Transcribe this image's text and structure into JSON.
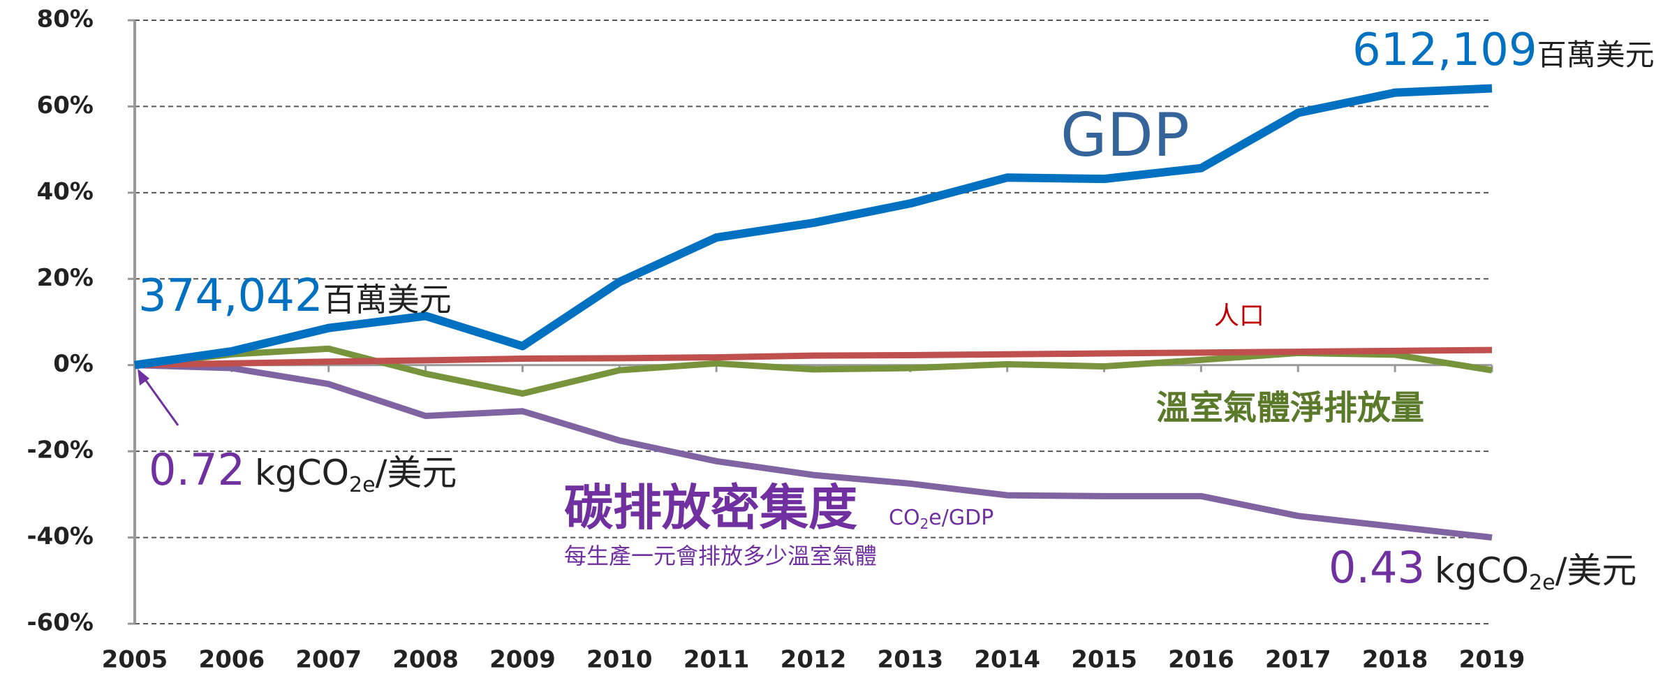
{
  "chart_data": {
    "type": "line",
    "categories": [
      "2005",
      "2006",
      "2007",
      "2008",
      "2009",
      "2010",
      "2011",
      "2012",
      "2013",
      "2014",
      "2015",
      "2016",
      "2017",
      "2018",
      "2019"
    ],
    "series": [
      {
        "name": "GDP",
        "color": "#0070c0",
        "values": [
          0,
          3.2,
          8.6,
          11.4,
          4.4,
          19.3,
          29.6,
          33,
          37.5,
          43.5,
          43.2,
          45.7,
          58.5,
          63.2,
          64.2
        ]
      },
      {
        "name": "人口",
        "color": "#c0504d",
        "values": [
          0,
          0.4,
          0.8,
          1.1,
          1.5,
          1.6,
          1.8,
          2.2,
          2.3,
          2.5,
          2.7,
          2.9,
          3.1,
          3.3,
          3.5
        ]
      },
      {
        "name": "溫室氣體淨排放量",
        "color": "#77933c",
        "values": [
          0,
          2.5,
          3.8,
          -2,
          -6.6,
          -1.2,
          0.4,
          -1,
          -0.7,
          0.2,
          -0.3,
          1.2,
          2.8,
          2.4,
          -1.2
        ]
      },
      {
        "name": "碳排放密集度",
        "color": "#8064a2",
        "values": [
          0,
          -0.7,
          -4.4,
          -11.8,
          -10.7,
          -17.5,
          -22.3,
          -25.5,
          -27.5,
          -30.2,
          -30.4,
          -30.4,
          -35,
          -37.5,
          -40
        ]
      }
    ],
    "ylim": [
      -60,
      80
    ],
    "yticks": [
      {
        "value": -60,
        "label": "-60%"
      },
      {
        "value": -40,
        "label": "-40%"
      },
      {
        "value": -20,
        "label": "-20%"
      },
      {
        "value": 0,
        "label": "0%"
      },
      {
        "value": 20,
        "label": "20%"
      },
      {
        "value": 40,
        "label": "40%"
      },
      {
        "value": 60,
        "label": "60%"
      },
      {
        "value": 80,
        "label": "80%"
      }
    ],
    "grid": true,
    "annotations": {
      "gdp_start": "374,042",
      "gdp_start_unit": "百萬美元",
      "gdp_end": "612,109",
      "gdp_end_unit": "百萬美元",
      "intensity_start": "0.72",
      "intensity_end": "0.43",
      "unit_a": "kgCO",
      "unit_sub": "2e",
      "unit_b": "/美元",
      "intensity_formula_a": "CO",
      "intensity_formula_sub": "2",
      "intensity_formula_b": "e/GDP",
      "intensity_note": "每生產一元會排放多少溫室氣體"
    }
  }
}
